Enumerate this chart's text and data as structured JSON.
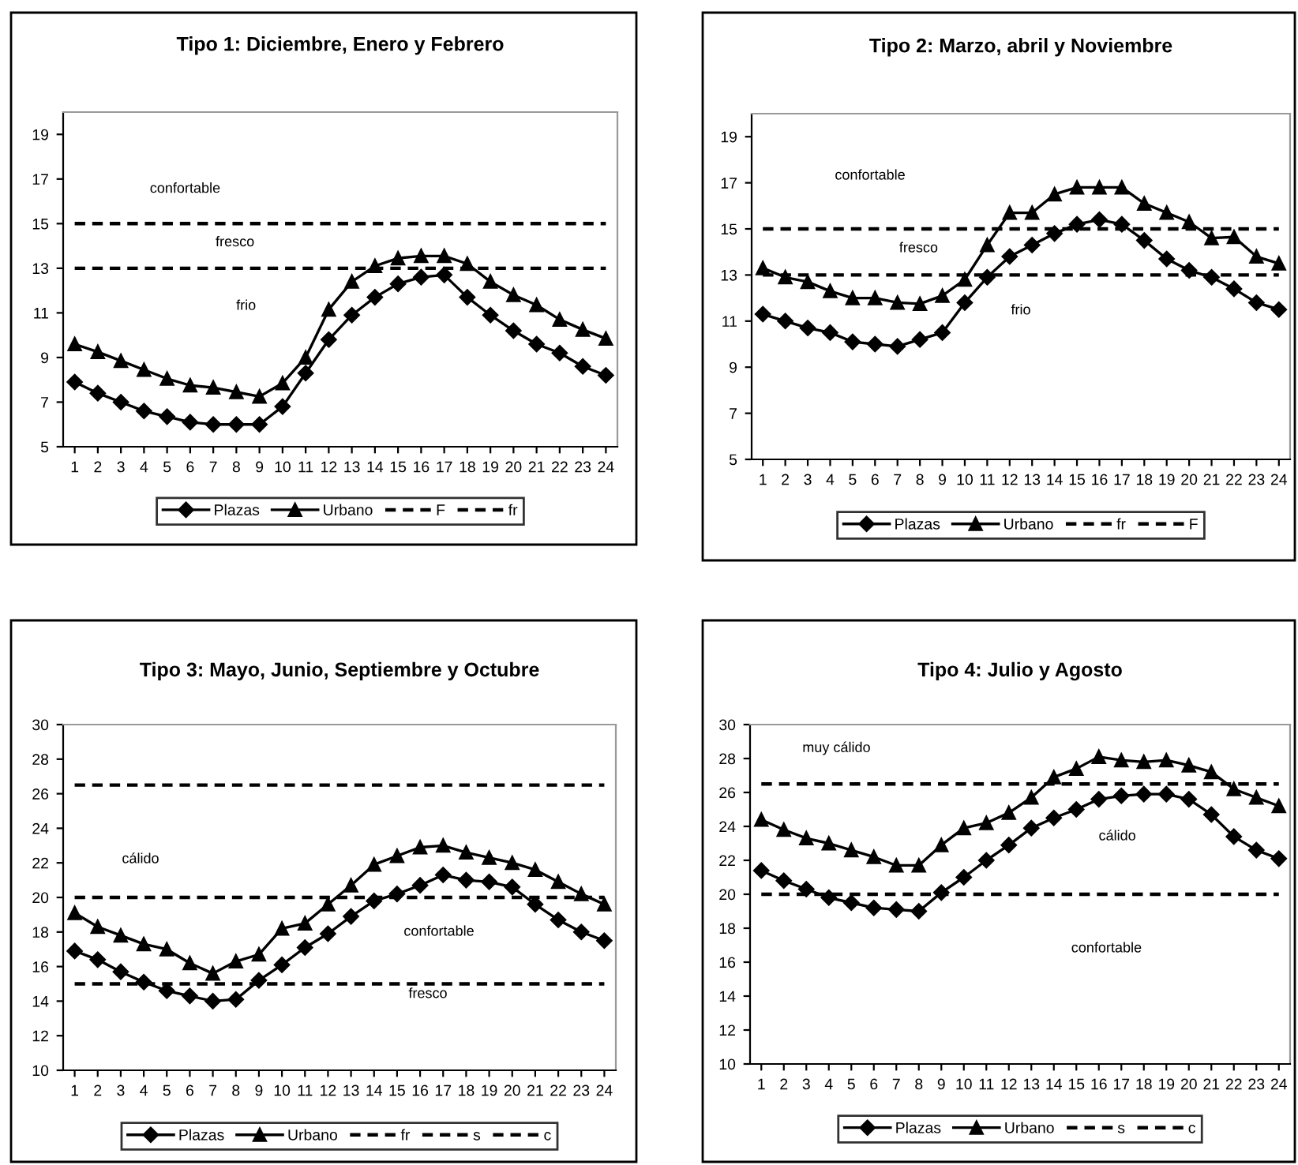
{
  "chart_data": [
    {
      "type": "line",
      "title": "Tipo 1: Diciembre, Enero y Febrero",
      "categories": [
        "1",
        "2",
        "3",
        "4",
        "5",
        "6",
        "7",
        "8",
        "9",
        "10",
        "11",
        "12",
        "13",
        "14",
        "15",
        "16",
        "17",
        "18",
        "19",
        "20",
        "21",
        "22",
        "23",
        "24"
      ],
      "ylim": [
        5,
        20
      ],
      "yticks": [
        5,
        7,
        9,
        11,
        13,
        15,
        17,
        19
      ],
      "grid": false,
      "legend": "bottom",
      "series": [
        {
          "name": "Plazas",
          "color": "#000000",
          "marker": "diamond",
          "line_style": "solid",
          "values": [
            7.9,
            7.4,
            7.0,
            6.6,
            6.35,
            6.1,
            6.0,
            6.0,
            6.0,
            6.8,
            8.3,
            9.8,
            10.9,
            11.7,
            12.3,
            12.6,
            12.7,
            11.7,
            10.9,
            10.2,
            9.6,
            9.2,
            8.6,
            8.2
          ]
        },
        {
          "name": "Urbano",
          "color": "#000000",
          "marker": "triangle",
          "line_style": "solid",
          "values": [
            9.6,
            9.25,
            8.85,
            8.45,
            8.05,
            7.75,
            7.65,
            7.45,
            7.25,
            7.85,
            9.0,
            11.15,
            12.4,
            13.1,
            13.45,
            13.55,
            13.55,
            13.2,
            12.4,
            11.8,
            11.35,
            10.7,
            10.25,
            9.85
          ]
        },
        {
          "name": "F",
          "color": "#000000",
          "marker": "none",
          "line_style": "dashed",
          "values": [
            15,
            15,
            15,
            15,
            15,
            15,
            15,
            15,
            15,
            15,
            15,
            15,
            15,
            15,
            15,
            15,
            15,
            15,
            15,
            15,
            15,
            15,
            15,
            15
          ]
        },
        {
          "name": "fr",
          "color": "#000000",
          "marker": "none",
          "line_style": "dashed",
          "values": [
            13,
            13,
            13,
            13,
            13,
            13,
            13,
            13,
            13,
            13,
            13,
            13,
            13,
            13,
            13,
            13,
            13,
            13,
            13,
            13,
            13,
            13,
            13,
            13
          ]
        }
      ],
      "annotations": [
        "confortable",
        "fresco",
        "frio"
      ]
    },
    {
      "type": "line",
      "title": "Tipo 2: Marzo, abril y Noviembre",
      "categories": [
        "1",
        "2",
        "3",
        "4",
        "5",
        "6",
        "7",
        "8",
        "9",
        "10",
        "11",
        "12",
        "13",
        "14",
        "15",
        "16",
        "17",
        "18",
        "19",
        "20",
        "21",
        "22",
        "23",
        "24"
      ],
      "ylim": [
        5,
        20
      ],
      "yticks": [
        5,
        7,
        9,
        11,
        13,
        15,
        17,
        19
      ],
      "grid": false,
      "legend": "bottom",
      "series": [
        {
          "name": "Plazas",
          "color": "#000000",
          "marker": "diamond",
          "line_style": "solid",
          "values": [
            11.3,
            11.0,
            10.7,
            10.5,
            10.1,
            10.0,
            9.9,
            10.2,
            10.5,
            11.8,
            12.9,
            13.8,
            14.3,
            14.8,
            15.2,
            15.4,
            15.2,
            14.5,
            13.7,
            13.2,
            12.9,
            12.4,
            11.8,
            11.5
          ]
        },
        {
          "name": "Urbano",
          "color": "#000000",
          "marker": "triangle",
          "line_style": "solid",
          "values": [
            13.3,
            12.9,
            12.7,
            12.3,
            12.0,
            12.0,
            11.8,
            11.75,
            12.1,
            12.8,
            14.3,
            15.7,
            15.7,
            16.5,
            16.8,
            16.8,
            16.8,
            16.1,
            15.7,
            15.3,
            14.6,
            14.65,
            13.8,
            13.5
          ]
        },
        {
          "name": "fr",
          "color": "#000000",
          "marker": "none",
          "line_style": "dashed",
          "values": [
            13,
            13,
            13,
            13,
            13,
            13,
            13,
            13,
            13,
            13,
            13,
            13,
            13,
            13,
            13,
            13,
            13,
            13,
            13,
            13,
            13,
            13,
            13,
            13
          ]
        },
        {
          "name": "F",
          "color": "#000000",
          "marker": "none",
          "line_style": "dashed",
          "values": [
            15,
            15,
            15,
            15,
            15,
            15,
            15,
            15,
            15,
            15,
            15,
            15,
            15,
            15,
            15,
            15,
            15,
            15,
            15,
            15,
            15,
            15,
            15,
            15
          ]
        }
      ],
      "annotations": [
        "confortable",
        "fresco",
        "frio"
      ]
    },
    {
      "type": "line",
      "title": "Tipo 3: Mayo, Junio, Septiembre y Octubre",
      "categories": [
        "1",
        "2",
        "3",
        "4",
        "5",
        "6",
        "7",
        "8",
        "9",
        "10",
        "11",
        "12",
        "13",
        "14",
        "15",
        "16",
        "17",
        "18",
        "19",
        "20",
        "21",
        "22",
        "23",
        "24"
      ],
      "ylim": [
        10,
        30
      ],
      "yticks": [
        10,
        12,
        14,
        16,
        18,
        20,
        22,
        24,
        26,
        28,
        30
      ],
      "grid": false,
      "legend": "bottom",
      "series": [
        {
          "name": "Plazas",
          "color": "#000000",
          "marker": "diamond",
          "line_style": "solid",
          "values": [
            16.9,
            16.4,
            15.7,
            15.1,
            14.6,
            14.3,
            14.0,
            14.1,
            15.2,
            16.1,
            17.1,
            17.9,
            18.9,
            19.8,
            20.2,
            20.7,
            21.3,
            21.0,
            20.9,
            20.6,
            19.6,
            18.7,
            18.0,
            17.5
          ]
        },
        {
          "name": "Urbano",
          "color": "#000000",
          "marker": "triangle",
          "line_style": "solid",
          "values": [
            19.1,
            18.3,
            17.8,
            17.3,
            17.0,
            16.2,
            15.6,
            16.3,
            16.7,
            18.2,
            18.5,
            19.6,
            20.7,
            21.9,
            22.4,
            22.9,
            23.0,
            22.6,
            22.3,
            22.0,
            21.6,
            20.9,
            20.2,
            19.6
          ]
        },
        {
          "name": "fr",
          "color": "#000000",
          "marker": "none",
          "line_style": "dashed",
          "values": [
            15,
            15,
            15,
            15,
            15,
            15,
            15,
            15,
            15,
            15,
            15,
            15,
            15,
            15,
            15,
            15,
            15,
            15,
            15,
            15,
            15,
            15,
            15,
            15
          ]
        },
        {
          "name": "s",
          "color": "#000000",
          "marker": "none",
          "line_style": "dashed",
          "values": [
            20,
            20,
            20,
            20,
            20,
            20,
            20,
            20,
            20,
            20,
            20,
            20,
            20,
            20,
            20,
            20,
            20,
            20,
            20,
            20,
            20,
            20,
            20,
            20
          ]
        },
        {
          "name": "c",
          "color": "#000000",
          "marker": "none",
          "line_style": "dashed",
          "values": [
            26.5,
            26.5,
            26.5,
            26.5,
            26.5,
            26.5,
            26.5,
            26.5,
            26.5,
            26.5,
            26.5,
            26.5,
            26.5,
            26.5,
            26.5,
            26.5,
            26.5,
            26.5,
            26.5,
            26.5,
            26.5,
            26.5,
            26.5,
            26.5
          ]
        }
      ],
      "annotations": [
        "cálido",
        "confortable",
        "fresco"
      ]
    },
    {
      "type": "line",
      "title": "Tipo 4: Julio y Agosto",
      "categories": [
        "1",
        "2",
        "3",
        "4",
        "5",
        "6",
        "7",
        "8",
        "9",
        "10",
        "11",
        "12",
        "13",
        "14",
        "15",
        "16",
        "17",
        "18",
        "19",
        "20",
        "21",
        "22",
        "23",
        "24"
      ],
      "ylim": [
        10,
        30
      ],
      "yticks": [
        10,
        12,
        14,
        16,
        18,
        20,
        22,
        24,
        26,
        28,
        30
      ],
      "grid": false,
      "legend": "bottom",
      "series": [
        {
          "name": "Plazas",
          "color": "#000000",
          "marker": "diamond",
          "line_style": "solid",
          "values": [
            21.4,
            20.8,
            20.3,
            19.8,
            19.5,
            19.2,
            19.1,
            19.0,
            20.1,
            21.0,
            22.0,
            22.9,
            23.9,
            24.5,
            25.0,
            25.6,
            25.8,
            25.9,
            25.9,
            25.6,
            24.7,
            23.4,
            22.6,
            22.1
          ]
        },
        {
          "name": "Urbano",
          "color": "#000000",
          "marker": "triangle",
          "line_style": "solid",
          "values": [
            24.4,
            23.8,
            23.3,
            23.0,
            22.6,
            22.2,
            21.7,
            21.7,
            22.9,
            23.9,
            24.2,
            24.8,
            25.7,
            26.9,
            27.4,
            28.1,
            27.9,
            27.8,
            27.9,
            27.6,
            27.2,
            26.2,
            25.7,
            25.2
          ]
        },
        {
          "name": "s",
          "color": "#000000",
          "marker": "none",
          "line_style": "dashed",
          "values": [
            20,
            20,
            20,
            20,
            20,
            20,
            20,
            20,
            20,
            20,
            20,
            20,
            20,
            20,
            20,
            20,
            20,
            20,
            20,
            20,
            20,
            20,
            20,
            20
          ]
        },
        {
          "name": "c",
          "color": "#000000",
          "marker": "none",
          "line_style": "dashed",
          "values": [
            26.5,
            26.5,
            26.5,
            26.5,
            26.5,
            26.5,
            26.5,
            26.5,
            26.5,
            26.5,
            26.5,
            26.5,
            26.5,
            26.5,
            26.5,
            26.5,
            26.5,
            26.5,
            26.5,
            26.5,
            26.5,
            26.5,
            26.5,
            26.5
          ]
        }
      ],
      "annotations": [
        "muy cálido",
        "cálido",
        "confortable"
      ]
    }
  ]
}
